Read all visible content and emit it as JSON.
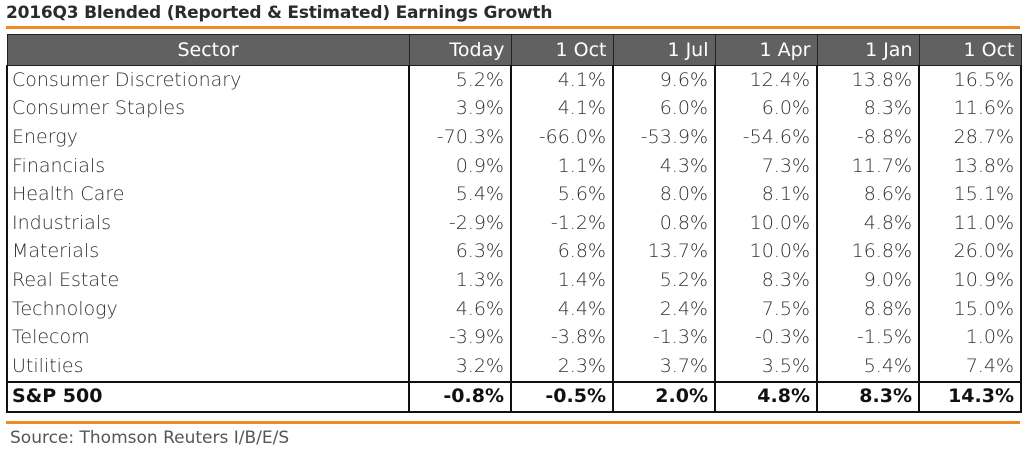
{
  "title": "2016Q3 Blended (Reported & Estimated) Earnings Growth",
  "source": "Source: Thomson Reuters I/B/E/S",
  "colors": {
    "accent": "#f08a24",
    "header_bg": "#616161",
    "header_text": "#ffffff"
  },
  "chart_data": {
    "type": "table",
    "title": "2016Q3 Blended (Reported & Estimated) Earnings Growth",
    "columns": [
      "Sector",
      "Today",
      "1 Oct",
      "1 Jul",
      "1 Apr",
      "1 Jan",
      "1 Oct"
    ],
    "rows": [
      {
        "sector": "Consumer Discretionary",
        "values": [
          "5.2%",
          "4.1%",
          "9.6%",
          "12.4%",
          "13.8%",
          "16.5%"
        ]
      },
      {
        "sector": "Consumer Staples",
        "values": [
          "3.9%",
          "4.1%",
          "6.0%",
          "6.0%",
          "8.3%",
          "11.6%"
        ]
      },
      {
        "sector": "Energy",
        "values": [
          "-70.3%",
          "-66.0%",
          "-53.9%",
          "-54.6%",
          "-8.8%",
          "28.7%"
        ]
      },
      {
        "sector": "Financials",
        "values": [
          "0.9%",
          "1.1%",
          "4.3%",
          "7.3%",
          "11.7%",
          "13.8%"
        ]
      },
      {
        "sector": "Health Care",
        "values": [
          "5.4%",
          "5.6%",
          "8.0%",
          "8.1%",
          "8.6%",
          "15.1%"
        ]
      },
      {
        "sector": "Industrials",
        "values": [
          "-2.9%",
          "-1.2%",
          "0.8%",
          "10.0%",
          "4.8%",
          "11.0%"
        ]
      },
      {
        "sector": "Materials",
        "values": [
          "6.3%",
          "6.8%",
          "13.7%",
          "10.0%",
          "16.8%",
          "26.0%"
        ]
      },
      {
        "sector": "Real Estate",
        "values": [
          "1.3%",
          "1.4%",
          "5.2%",
          "8.3%",
          "9.0%",
          "10.9%"
        ]
      },
      {
        "sector": "Technology",
        "values": [
          "4.6%",
          "4.4%",
          "2.4%",
          "7.5%",
          "8.8%",
          "15.0%"
        ]
      },
      {
        "sector": "Telecom",
        "values": [
          "-3.9%",
          "-3.8%",
          "-1.3%",
          "-0.3%",
          "-1.5%",
          "1.0%"
        ]
      },
      {
        "sector": "Utilities",
        "values": [
          "3.2%",
          "2.3%",
          "3.7%",
          "3.5%",
          "5.4%",
          "7.4%"
        ]
      }
    ],
    "total": {
      "sector": "S&P 500",
      "values": [
        "-0.8%",
        "-0.5%",
        "2.0%",
        "4.8%",
        "8.3%",
        "14.3%"
      ]
    }
  }
}
